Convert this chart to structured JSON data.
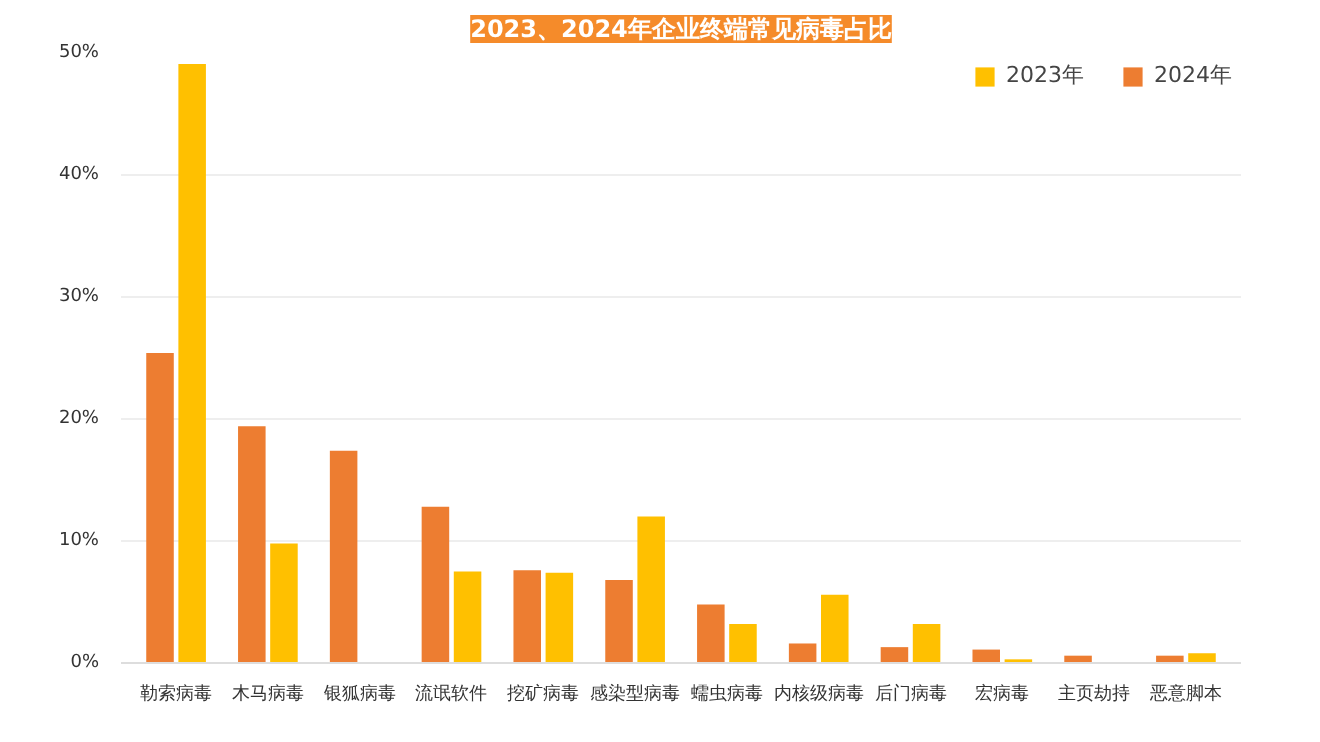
{
  "chart_data": {
    "type": "bar",
    "title": "2023、2024年企业终端常见病毒占比",
    "categories": [
      "勒索病毒",
      "木马病毒",
      "银狐病毒",
      "流氓软件",
      "挖矿病毒",
      "感染型病毒",
      "蠕虫病毒",
      "内核级病毒",
      "后门病毒",
      "宏病毒",
      "主页劫持",
      "恶意脚本"
    ],
    "series": [
      {
        "name": "2023年",
        "color": "#ffc000",
        "values": [
          49.1,
          9.8,
          null,
          7.5,
          7.4,
          12.0,
          3.2,
          5.6,
          3.2,
          0.3,
          null,
          0.8
        ]
      },
      {
        "name": "2024年",
        "color": "#ed7d31",
        "values": [
          25.4,
          19.4,
          17.4,
          12.8,
          7.6,
          6.8,
          4.8,
          1.6,
          1.3,
          1.1,
          0.6,
          0.6
        ]
      }
    ],
    "ylim": [
      0,
      50
    ],
    "yticks": [
      {
        "value": 0,
        "label": "0%"
      },
      {
        "value": 10,
        "label": "10%"
      },
      {
        "value": 20,
        "label": "20%"
      },
      {
        "value": 30,
        "label": "30%"
      },
      {
        "value": 40,
        "label": "40%"
      },
      {
        "value": 50,
        "label": "50%"
      }
    ],
    "grid": "y",
    "legend": "top right"
  }
}
